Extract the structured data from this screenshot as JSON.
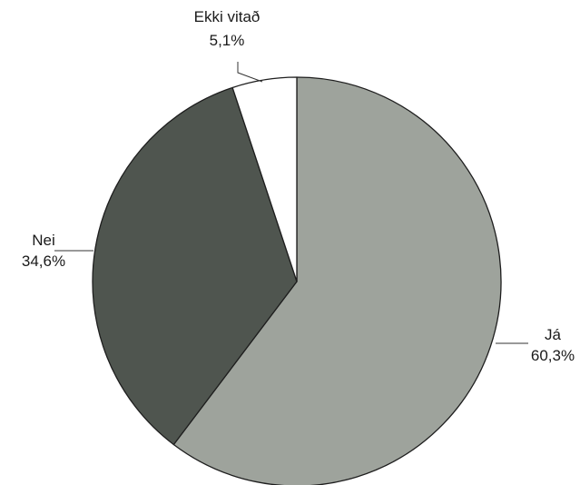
{
  "chart_data": {
    "type": "pie",
    "title": "",
    "start_angle_deg": 0,
    "direction": "clockwise",
    "slices": [
      {
        "label": "Já",
        "value": 60.3,
        "value_label": "60,3%",
        "color": "#9ea39c"
      },
      {
        "label": "Nei",
        "value": 34.6,
        "value_label": "34,6%",
        "color": "#4f554f"
      },
      {
        "label": "Ekki vitað",
        "value": 5.1,
        "value_label": "5,1%",
        "color": "#ffffff"
      }
    ]
  }
}
